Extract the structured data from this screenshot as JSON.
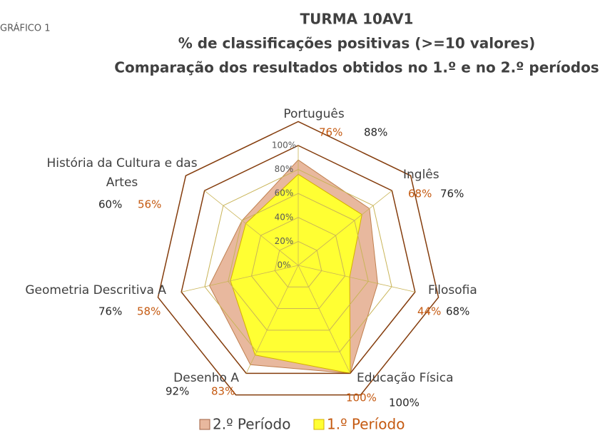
{
  "chart_data": {
    "type": "radar",
    "label": "GRÁFICO 1",
    "title": [
      "TURMA 10AV1",
      "% de classificações positivas (>=10 valores)",
      "Comparação dos resultados obtidos no 1.º e no 2.º períodos"
    ],
    "categories": [
      "Português",
      "Inglês",
      "Filosofia",
      "Educação Física",
      "Desenho A",
      "Geometria Descritiva A",
      "História da Cultura e das Artes"
    ],
    "series": [
      {
        "name": "2.º Período",
        "color": "#e8b89e",
        "values": [
          88,
          76,
          68,
          100,
          92,
          76,
          60
        ],
        "value_labels": [
          "88%",
          "76%",
          "68%",
          "100%",
          "92%",
          "76%",
          "60%"
        ]
      },
      {
        "name": "1.º Período",
        "color": "#ffff33",
        "values": [
          76,
          68,
          44,
          100,
          83,
          58,
          56
        ],
        "value_labels": [
          "76%",
          "68%",
          "44%",
          "100%",
          "83%",
          "58%",
          "56%"
        ]
      }
    ],
    "ylim": [
      0,
      100
    ],
    "yticks": [
      {
        "value": 0,
        "label": "0%"
      },
      {
        "value": 20,
        "label": "20%"
      },
      {
        "value": 40,
        "label": "40%"
      },
      {
        "value": 60,
        "label": "60%"
      },
      {
        "value": 80,
        "label": "80%"
      },
      {
        "value": 100,
        "label": "100%"
      }
    ],
    "grid": true,
    "legend": "bottom"
  }
}
